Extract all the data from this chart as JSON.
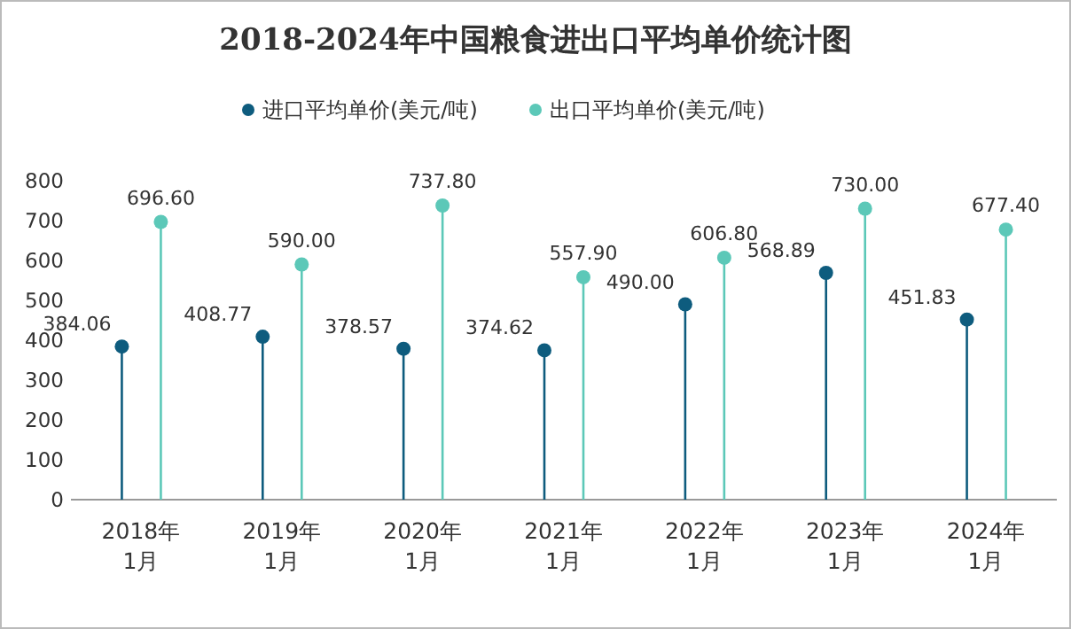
{
  "chart_data": {
    "type": "lollipop",
    "title": "2018-2024年中国粮食进出口平均单价统计图",
    "categories": [
      "2018年1月",
      "2019年1月",
      "2020年1月",
      "2021年1月",
      "2022年1月",
      "2023年1月",
      "2024年1月"
    ],
    "series": [
      {
        "name": "进口平均单价(美元/吨)",
        "color": "#0e5c7e",
        "values": [
          384.06,
          408.77,
          378.57,
          374.62,
          490.0,
          568.89,
          451.83
        ],
        "value_labels": [
          "384.06",
          "408.77",
          "378.57",
          "374.62",
          "490.00",
          "568.89",
          "451.83"
        ]
      },
      {
        "name": "出口平均单价(美元/吨)",
        "color": "#5cc8b8",
        "values": [
          696.6,
          590.0,
          737.8,
          557.9,
          606.8,
          730.0,
          677.4
        ],
        "value_labels": [
          "696.60",
          "590.00",
          "737.80",
          "557.90",
          "606.80",
          "730.00",
          "677.40"
        ]
      }
    ],
    "ylim": [
      0,
      800
    ],
    "yticks": [
      0,
      100,
      200,
      300,
      400,
      500,
      600,
      700,
      800
    ],
    "legend": "top",
    "marker": "circle"
  }
}
